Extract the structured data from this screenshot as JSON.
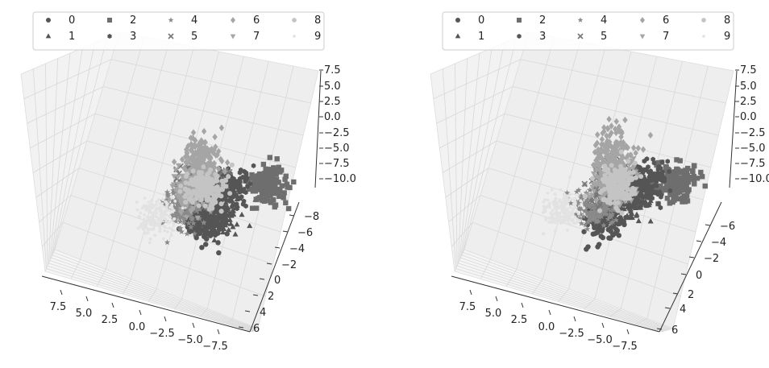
{
  "chart_data": [
    {
      "type": "scatter",
      "projection": "3d",
      "legend": {
        "placement": "top",
        "columns": 5,
        "entries": [
          "0",
          "1",
          "2",
          "3",
          "4",
          "5",
          "6",
          "7",
          "8",
          "9"
        ]
      },
      "xlim": [
        8.5,
        -9
      ],
      "ylim": [
        -9.5,
        7
      ],
      "zlim": [
        -11,
        8
      ],
      "x_ticks": [
        "7.5",
        "5.0",
        "2.5",
        "0.0",
        "−2.5",
        "−5.0",
        "−7.5"
      ],
      "y_ticks": [
        "−8",
        "−6",
        "−4",
        "−2",
        "0",
        "2",
        "4",
        "6"
      ],
      "z_ticks": [
        "7.5",
        "5.0",
        "2.5",
        "0.0",
        "−2.5",
        "−5.0",
        "−7.5",
        "−10.0"
      ],
      "grid": true,
      "series": [
        {
          "name": "0",
          "marker": "circle",
          "color": "#555555",
          "center": [
            3.5,
            -7.0,
            0.0
          ]
        },
        {
          "name": "1",
          "marker": "triangle-up",
          "color": "#555555",
          "center": [
            -1.5,
            -1.5,
            -3.0
          ]
        },
        {
          "name": "2",
          "marker": "square",
          "color": "#6e6e6e",
          "center": [
            -6.0,
            -4.0,
            0.0
          ]
        },
        {
          "name": "3",
          "marker": "hexagon",
          "color": "#555555",
          "center": [
            -3.0,
            -1.0,
            -1.0
          ]
        },
        {
          "name": "4",
          "marker": "star",
          "color": "#8a8a8a",
          "center": [
            1.5,
            1.0,
            -3.0
          ]
        },
        {
          "name": "5",
          "marker": "x",
          "color": "#777777",
          "center": [
            0.5,
            -1.0,
            0.0
          ]
        },
        {
          "name": "6",
          "marker": "diamond",
          "color": "#a5a5a5",
          "center": [
            4.0,
            -7.0,
            6.0
          ]
        },
        {
          "name": "7",
          "marker": "triangle-down",
          "color": "#a5a5a5",
          "center": [
            -1.0,
            3.5,
            -3.0
          ]
        },
        {
          "name": "8",
          "marker": "octagon",
          "color": "#c4c4c4",
          "center": [
            0.5,
            -2.0,
            0.0
          ]
        },
        {
          "name": "9",
          "marker": "point",
          "color": "#e2e2e2",
          "center": [
            4.5,
            1.5,
            -3.5
          ]
        }
      ]
    },
    {
      "type": "scatter",
      "projection": "3d",
      "legend": {
        "placement": "top",
        "columns": 5,
        "entries": [
          "0",
          "1",
          "2",
          "3",
          "4",
          "5",
          "6",
          "7",
          "8",
          "9"
        ]
      },
      "xlim": [
        8.5,
        -9
      ],
      "ylim": [
        -7,
        7
      ],
      "zlim": [
        -11,
        8
      ],
      "x_ticks": [
        "7.5",
        "5.0",
        "2.5",
        "0.0",
        "−2.5",
        "−5.0",
        "−7.5"
      ],
      "y_ticks": [
        "−6",
        "−4",
        "−2",
        "0",
        "2",
        "4",
        "6"
      ],
      "z_ticks": [
        "7.5",
        "5.0",
        "2.5",
        "0.0",
        "−2.5",
        "−5.0",
        "−7.5",
        "−10.0"
      ],
      "grid": true,
      "series": [
        {
          "name": "0",
          "marker": "circle",
          "color": "#555555",
          "center": [
            4.5,
            -6.0,
            0.0
          ]
        },
        {
          "name": "1",
          "marker": "triangle-up",
          "color": "#555555",
          "center": [
            -2.0,
            -1.0,
            -2.0
          ]
        },
        {
          "name": "2",
          "marker": "square",
          "color": "#6e6e6e",
          "center": [
            -6.0,
            -3.5,
            0.0
          ]
        },
        {
          "name": "3",
          "marker": "hexagon",
          "color": "#555555",
          "center": [
            -4.0,
            -0.5,
            -1.0
          ]
        },
        {
          "name": "4",
          "marker": "star",
          "color": "#8a8a8a",
          "center": [
            1.5,
            1.0,
            -3.0
          ]
        },
        {
          "name": "5",
          "marker": "x",
          "color": "#777777",
          "center": [
            0.5,
            -1.0,
            0.0
          ]
        },
        {
          "name": "6",
          "marker": "diamond",
          "color": "#a5a5a5",
          "center": [
            3.0,
            -6.0,
            6.0
          ]
        },
        {
          "name": "7",
          "marker": "triangle-down",
          "color": "#a5a5a5",
          "center": [
            -2.5,
            4.0,
            -3.0
          ]
        },
        {
          "name": "8",
          "marker": "octagon",
          "color": "#c4c4c4",
          "center": [
            0.0,
            -1.5,
            0.0
          ]
        },
        {
          "name": "9",
          "marker": "point",
          "color": "#e2e2e2",
          "center": [
            5.0,
            2.0,
            -3.0
          ]
        }
      ]
    }
  ]
}
